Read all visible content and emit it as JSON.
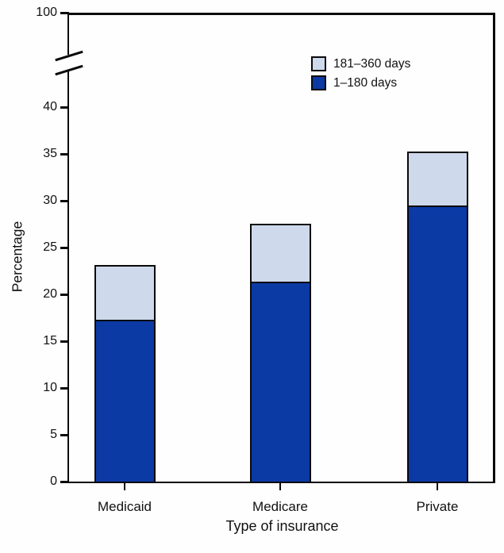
{
  "figure": {
    "y_axis": {
      "ticks": [
        0,
        5,
        10,
        15,
        20,
        25,
        30,
        35,
        40
      ],
      "break_label": "100"
    },
    "legend": [
      {
        "label": "181–360 days",
        "color": "#CED9EC"
      },
      {
        "label": "1–180 days",
        "color": "#0C3AA5"
      }
    ]
  },
  "chart_data": {
    "type": "bar",
    "stacked": true,
    "title": "",
    "xlabel": "Type of insurance",
    "ylabel": "Percentage",
    "categories": [
      "Medicaid",
      "Medicare",
      "Private"
    ],
    "series": [
      {
        "name": "1–180 days",
        "color": "#0C3AA5",
        "values": [
          17.3,
          21.3,
          29.5
        ]
      },
      {
        "name": "181–360 days",
        "color": "#CED9EC",
        "values": [
          5.8,
          6.2,
          5.7
        ]
      }
    ],
    "stack_totals": [
      23.1,
      27.5,
      35.2
    ],
    "y_ticks": [
      0,
      5,
      10,
      15,
      20,
      25,
      30,
      35,
      40,
      100
    ],
    "axis_break": {
      "lower_max": 45,
      "upper_tick": 100
    },
    "ylim": [
      0,
      100
    ],
    "grid": false,
    "legend_position": "inside-upper-right",
    "legend_order": [
      "181–360 days",
      "1–180 days"
    ],
    "bar_outline_color": "#0a0a0a"
  }
}
